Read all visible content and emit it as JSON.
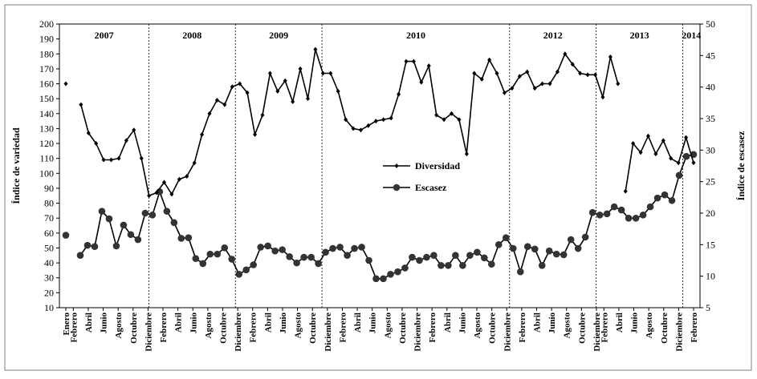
{
  "chart_data": {
    "type": "line",
    "ylabel_left": "Índice de variedad",
    "ylabel_right": "Índice de escasez",
    "ylim_left": [
      10,
      200
    ],
    "ylim_right": [
      5,
      50
    ],
    "yticks_left": [
      "10",
      "20",
      "30",
      "40",
      "50",
      "60",
      "70",
      "80",
      "90",
      "100",
      "110",
      "120",
      "130",
      "140",
      "150",
      "160",
      "170",
      "180",
      "190",
      "200"
    ],
    "yticks_right": [
      "5",
      "10",
      "15",
      "20",
      "25",
      "30",
      "35",
      "40",
      "45",
      "50"
    ],
    "years": [
      {
        "label": "2007",
        "start": 0,
        "end": 11
      },
      {
        "label": "2008",
        "start": 11,
        "end": 21
      },
      {
        "label": "2009",
        "start": 21,
        "end": 31
      },
      {
        "label": "2010",
        "start": 31,
        "end": 51
      },
      {
        "label": "2012",
        "start": 51,
        "end": 61
      },
      {
        "label": "2013",
        "start": 61,
        "end": 71
      },
      {
        "label": "2014",
        "start": 71,
        "end": 73
      }
    ],
    "xticks": [
      "Enero",
      "Febrero",
      "Abril",
      "Junio",
      "Agosto",
      "Octubre",
      "Diciembre",
      "Febrero",
      "Abril",
      "Junio",
      "Agosto",
      "Octubre",
      "Diciembre",
      "Febrero",
      "Abril",
      "Junio",
      "Agosto",
      "Octubre",
      "Diciembre",
      "Febrero",
      "Abril",
      "Junio",
      "Agosto",
      "Octubre",
      "Diciembre",
      "Febrero",
      "Abril",
      "Junio",
      "Agosto",
      "Octubre",
      "Diciembre",
      "Febrero",
      "Abril",
      "Junio",
      "Agosto",
      "Octubre",
      "Diciembre",
      "Febrero",
      "Abril",
      "Junio",
      "Agosto",
      "Octubre",
      "Diciembre",
      "Febrero"
    ],
    "xtick_positions": [
      0,
      1,
      3,
      5,
      7,
      9,
      11,
      13,
      15,
      17,
      19,
      21,
      23,
      25,
      27,
      29,
      31,
      33,
      35,
      37,
      39,
      41,
      43,
      45,
      47,
      49,
      51,
      53,
      55,
      57,
      59,
      61,
      63,
      65,
      67,
      69,
      71,
      72,
      74,
      76,
      78,
      80,
      82,
      84
    ],
    "series": [
      {
        "name": "Diversidad",
        "axis": "left",
        "marker": "diamond",
        "values": [
          160,
          null,
          146,
          127,
          120,
          109,
          109,
          110,
          122,
          129,
          110,
          85,
          87,
          94,
          86,
          96,
          98,
          107,
          126,
          140,
          149,
          146,
          158,
          160,
          154,
          126,
          139,
          167,
          155,
          162,
          148,
          170,
          150,
          183,
          167,
          167,
          155,
          136,
          130,
          129,
          132,
          135,
          136,
          137,
          153,
          175,
          175,
          161,
          172,
          139,
          136,
          140,
          136,
          113,
          167,
          163,
          176,
          167,
          154,
          157,
          165,
          168,
          157,
          160,
          160,
          168,
          180,
          173,
          167,
          166,
          166,
          151,
          178,
          160,
          88,
          120,
          114,
          125,
          113,
          122,
          110,
          107,
          124,
          107
        ],
        "segments": [
          [
            0,
            0
          ],
          [
            2,
            73
          ],
          [
            74,
            83
          ]
        ]
      },
      {
        "name": "Escasez",
        "axis": "right",
        "marker": "circle",
        "values": [
          16.5,
          null,
          13.3,
          14.9,
          14.7,
          20.3,
          19.1,
          14.8,
          18.1,
          16.6,
          15.8,
          20.0,
          19.7,
          23.4,
          20.3,
          18.5,
          16.0,
          16.1,
          12.8,
          12.0,
          13.5,
          13.5,
          14.5,
          12.7,
          10.3,
          11.0,
          11.8,
          14.6,
          14.8,
          14.0,
          14.2,
          13.1,
          12.1,
          13.0,
          13.0,
          12.0,
          13.8,
          14.4,
          14.6,
          13.3,
          14.4,
          14.6,
          12.5,
          9.6,
          9.6,
          10.3,
          10.7,
          11.3,
          13.0,
          12.5,
          13.0,
          13.3,
          11.7,
          11.7,
          13.3,
          11.7,
          13.3,
          13.8,
          12.9,
          11.9,
          15.0,
          16.1,
          14.4,
          10.7,
          14.7,
          14.3,
          11.7,
          14.0,
          13.5,
          13.4,
          15.8,
          14.4,
          16.2,
          20.1,
          19.7,
          19.9,
          21.0,
          20.5,
          19.2,
          19.2,
          19.7,
          21.0,
          22.4,
          22.9,
          22.0,
          26.0,
          29.0,
          29.3
        ],
        "segments": [
          [
            0,
            0
          ],
          [
            2,
            87
          ]
        ]
      }
    ],
    "legend": [
      "Diversidad",
      "Escasez"
    ],
    "legend_position": "center"
  }
}
